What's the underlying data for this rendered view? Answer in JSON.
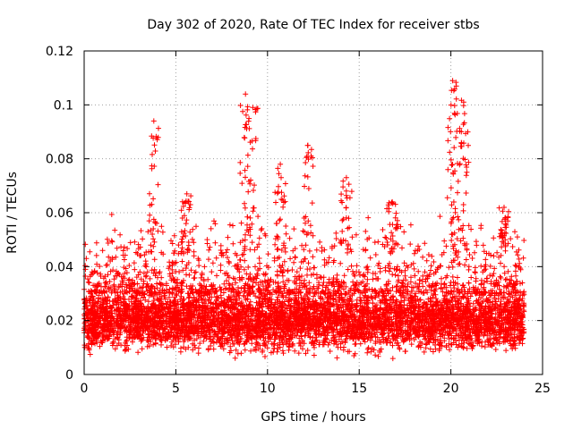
{
  "chart_data": {
    "type": "scatter",
    "title": "Day 302 of 2020, Rate Of TEC Index for receiver stbs",
    "xlabel": "GPS time / hours",
    "ylabel": "ROTI / TECUs",
    "xlim": [
      0,
      25
    ],
    "ylim": [
      0,
      0.12
    ],
    "xticks": [
      0,
      5,
      10,
      15,
      20,
      25
    ],
    "xtick_labels": [
      "0",
      "5",
      "10",
      "15",
      "20",
      "25"
    ],
    "yticks": [
      0,
      0.02,
      0.04,
      0.06,
      0.08,
      0.1,
      0.12
    ],
    "ytick_labels": [
      "0",
      "0.02",
      "0.04",
      "0.06",
      "0.08",
      "0.1",
      "0.12"
    ],
    "grid": true,
    "marker": "+",
    "color": "#ff0000",
    "x_range_of_data": [
      0,
      24
    ],
    "bulk_range": [
      0.008,
      0.035
    ],
    "notable_peaks": [
      {
        "x": 3.8,
        "y": 0.094
      },
      {
        "x": 8.8,
        "y": 0.104
      },
      {
        "x": 9.2,
        "y": 0.099
      },
      {
        "x": 12.2,
        "y": 0.085
      },
      {
        "x": 10.7,
        "y": 0.078
      },
      {
        "x": 20.1,
        "y": 0.109
      },
      {
        "x": 20.3,
        "y": 0.107
      },
      {
        "x": 20.7,
        "y": 0.101
      },
      {
        "x": 5.6,
        "y": 0.067
      },
      {
        "x": 14.3,
        "y": 0.073
      },
      {
        "x": 16.8,
        "y": 0.064
      },
      {
        "x": 22.9,
        "y": 0.062
      }
    ]
  }
}
